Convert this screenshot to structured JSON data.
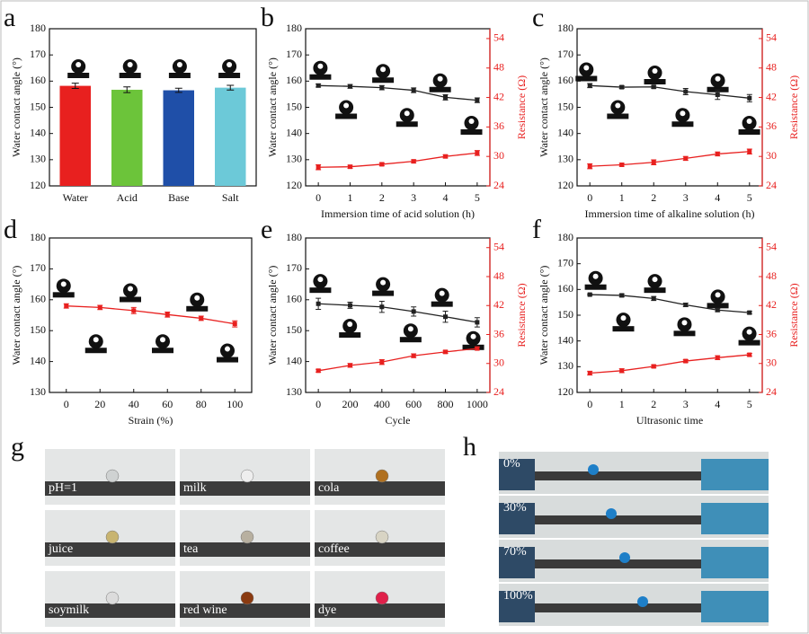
{
  "chart_data": [
    {
      "type": "bar",
      "panel": "a",
      "ylabel": "Water contact angle (°)",
      "categories": [
        "Water",
        "Acid",
        "Base",
        "Salt"
      ],
      "values": [
        158.2,
        156.7,
        156.5,
        157.5
      ],
      "errors": [
        1.0,
        1.1,
        0.8,
        0.9
      ],
      "colors": [
        "#e8201f",
        "#6cc43a",
        "#1f4fa8",
        "#6cc9d8"
      ],
      "ylim": [
        120,
        180
      ],
      "yticks": [
        120,
        130,
        140,
        150,
        160,
        170,
        180
      ]
    },
    {
      "type": "line",
      "panel": "b",
      "xlabel": "Immersion time of acid solution (h)",
      "ylabel": "Water contact angle (°)",
      "y2label": "Resistance (Ω)",
      "x": [
        0,
        1,
        2,
        3,
        4,
        5
      ],
      "xlim": [
        -0.4,
        5.4
      ],
      "xticks": [
        0,
        1,
        2,
        3,
        4,
        5
      ],
      "ylim": [
        120,
        180
      ],
      "yticks": [
        120,
        130,
        140,
        150,
        160,
        170,
        180
      ],
      "y2lim": [
        24,
        56
      ],
      "y2ticks": [
        24,
        30,
        36,
        42,
        48,
        54
      ],
      "series": [
        {
          "color": "#222222",
          "values": [
            158.3,
            158,
            157.5,
            156.5,
            153.8,
            152.7
          ],
          "errors": [
            0.6,
            0.7,
            0.8,
            0.9,
            1.0,
            0.9
          ]
        },
        {
          "color": "#e8201f",
          "axis": "y2",
          "values": [
            27.8,
            27.9,
            28.4,
            29.0,
            30.0,
            30.7
          ],
          "errors": [
            0.5,
            0.3,
            0.3,
            0.3,
            0.3,
            0.5
          ]
        }
      ]
    },
    {
      "type": "line",
      "panel": "c",
      "xlabel": "Immersion time of alkaline solution (h)",
      "ylabel": "Water contact angle (°)",
      "y2label": "Resistance (Ω)",
      "x": [
        0,
        1,
        2,
        3,
        4,
        5
      ],
      "xlim": [
        -0.4,
        5.4
      ],
      "xticks": [
        0,
        1,
        2,
        3,
        4,
        5
      ],
      "ylim": [
        120,
        180
      ],
      "yticks": [
        120,
        130,
        140,
        150,
        160,
        170,
        180
      ],
      "y2lim": [
        24,
        56
      ],
      "y2ticks": [
        24,
        30,
        36,
        42,
        48,
        54
      ],
      "series": [
        {
          "color": "#222222",
          "values": [
            158.3,
            157.7,
            157.8,
            156,
            154.8,
            153.5
          ],
          "errors": [
            0.8,
            0.5,
            0.5,
            1.2,
            1.8,
            1.4
          ]
        },
        {
          "color": "#e8201f",
          "axis": "y2",
          "values": [
            28,
            28.3,
            28.8,
            29.6,
            30.5,
            31
          ],
          "errors": [
            0.5,
            0.3,
            0.5,
            0.4,
            0.4,
            0.5
          ]
        }
      ]
    },
    {
      "type": "line",
      "panel": "d",
      "xlabel": "Strain (%)",
      "ylabel": "Water contact angle (°)",
      "x": [
        0,
        20,
        40,
        60,
        80,
        100
      ],
      "xlim": [
        -10,
        110
      ],
      "xticks": [
        0,
        20,
        40,
        60,
        80,
        100
      ],
      "ylim": [
        130,
        180
      ],
      "yticks": [
        130,
        140,
        150,
        160,
        170,
        180
      ],
      "series": [
        {
          "color": "#e8201f",
          "values": [
            158,
            157.5,
            156.5,
            155.2,
            154,
            152.2
          ],
          "errors": [
            0.7,
            0.7,
            1.0,
            0.8,
            0.7,
            1.0
          ]
        }
      ]
    },
    {
      "type": "line",
      "panel": "e",
      "xlabel": "Cycle",
      "ylabel": "Water contact angle (°)",
      "y2label": "Resistance (Ω)",
      "x": [
        0,
        200,
        400,
        600,
        800,
        1000
      ],
      "xlim": [
        -80,
        1080
      ],
      "xticks": [
        0,
        200,
        400,
        600,
        800,
        1000
      ],
      "ylim": [
        130,
        180
      ],
      "yticks": [
        130,
        140,
        150,
        160,
        170,
        180
      ],
      "y2lim": [
        24,
        56
      ],
      "y2ticks": [
        24,
        30,
        36,
        42,
        48,
        54
      ],
      "series": [
        {
          "color": "#222222",
          "values": [
            158.7,
            158.2,
            157.7,
            156.2,
            154.5,
            152.7
          ],
          "errors": [
            1.8,
            1.0,
            1.8,
            1.5,
            1.8,
            1.5
          ]
        },
        {
          "color": "#e8201f",
          "axis": "y2",
          "values": [
            28.5,
            29.6,
            30.3,
            31.6,
            32.4,
            33.1
          ],
          "errors": [
            0.3,
            0.4,
            0.5,
            0.4,
            0.3,
            0.3
          ]
        }
      ]
    },
    {
      "type": "line",
      "panel": "f",
      "xlabel": "Ultrasonic time",
      "ylabel": "Water contact angle (°)",
      "y2label": "Resistance (Ω)",
      "x": [
        0,
        1,
        2,
        3,
        4,
        5
      ],
      "xlim": [
        -0.4,
        5.4
      ],
      "xticks": [
        0,
        1,
        2,
        3,
        4,
        5
      ],
      "ylim": [
        120,
        180
      ],
      "yticks": [
        120,
        130,
        140,
        150,
        160,
        170,
        180
      ],
      "y2lim": [
        24,
        56
      ],
      "y2ticks": [
        24,
        30,
        36,
        42,
        48,
        54
      ],
      "series": [
        {
          "color": "#222222",
          "values": [
            158,
            157.7,
            156.5,
            154,
            152,
            151
          ],
          "errors": [
            0.3,
            0.6,
            0.8,
            0.7,
            0.6,
            0.5
          ]
        },
        {
          "color": "#e8201f",
          "axis": "y2",
          "values": [
            28,
            28.5,
            29.4,
            30.5,
            31.2,
            31.8
          ],
          "errors": [
            0.4,
            0.4,
            0.3,
            0.3,
            0.4,
            0.3
          ]
        }
      ]
    }
  ],
  "photos": [
    {
      "panel": "g",
      "labels": [
        "pH=1",
        "milk",
        "cola",
        "juice",
        "tea",
        "coffee",
        "soymilk",
        "red wine",
        "dye"
      ]
    },
    {
      "panel": "h",
      "labels": [
        "0%",
        "30%",
        "70%",
        "100%"
      ]
    }
  ]
}
